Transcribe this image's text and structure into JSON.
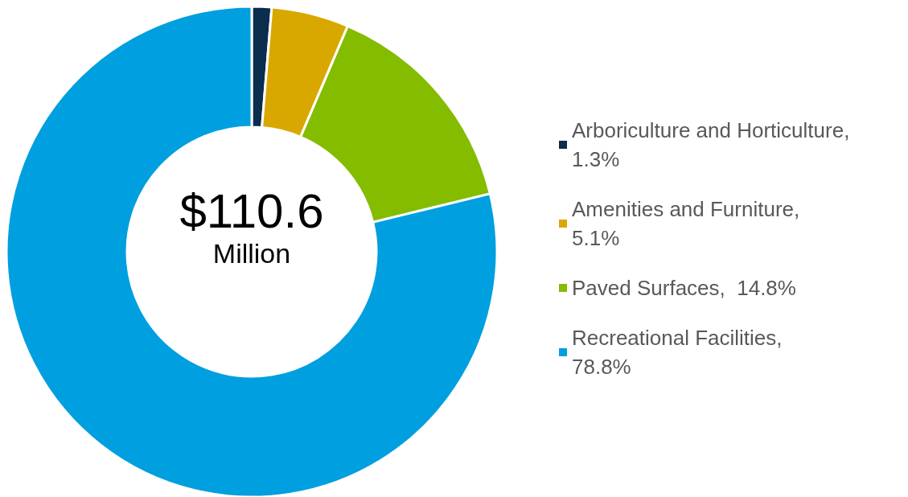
{
  "chart_data": {
    "type": "donut",
    "categories": [
      "Arboriculture and Horticulture,\n1.3%",
      "Amenities and Furniture,\n5.1%",
      "Paved Surfaces,  14.8%",
      "Recreational Facilities,\n78.8%"
    ],
    "values": [
      1.3,
      5.1,
      14.8,
      78.8
    ],
    "colors": [
      "#0b2d4e",
      "#d9a800",
      "#84bc00",
      "#009fdf"
    ],
    "annotations": [
      "$110.6",
      "Million"
    ],
    "legend": "right"
  }
}
